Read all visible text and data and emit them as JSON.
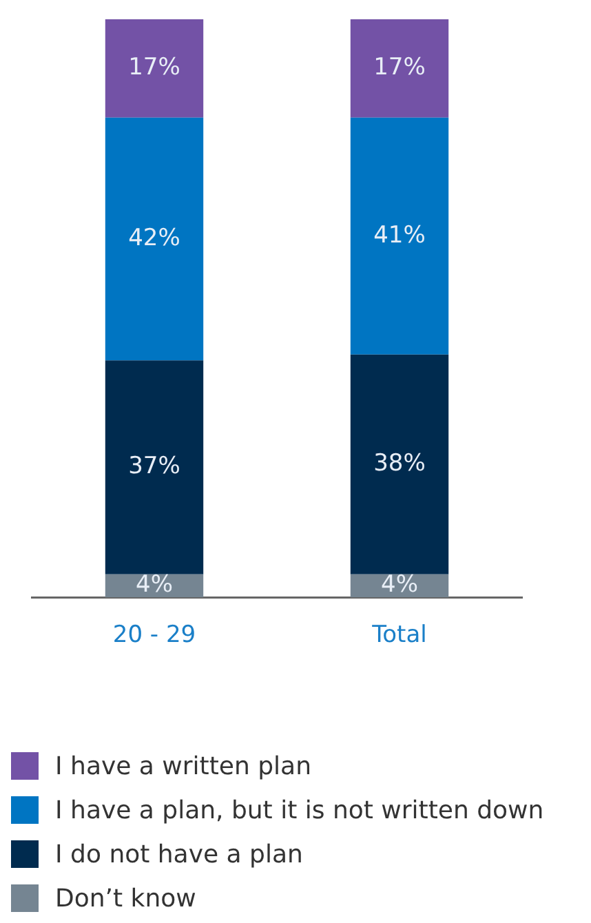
{
  "chart_data": {
    "type": "bar",
    "stacked": true,
    "relative": false,
    "categories": [
      "20 - 29",
      "Total"
    ],
    "series": [
      {
        "name": "Don’t know",
        "color": "#758592",
        "values": [
          4,
          4
        ],
        "value_labels": [
          "4%",
          "4%"
        ]
      },
      {
        "name": "I do not have a plan",
        "color": "#002b4f",
        "values": [
          37,
          38
        ],
        "value_labels": [
          "37%",
          "38%"
        ]
      },
      {
        "name": "I have a plan, but it is not written down",
        "color": "#0075c2",
        "values": [
          42,
          41
        ],
        "value_labels": [
          "42%",
          "41%"
        ]
      },
      {
        "name": "I have a written plan",
        "color": "#7352a6",
        "values": [
          17,
          17
        ],
        "value_labels": [
          "17%",
          "17%"
        ]
      }
    ],
    "legend": "bottom"
  }
}
